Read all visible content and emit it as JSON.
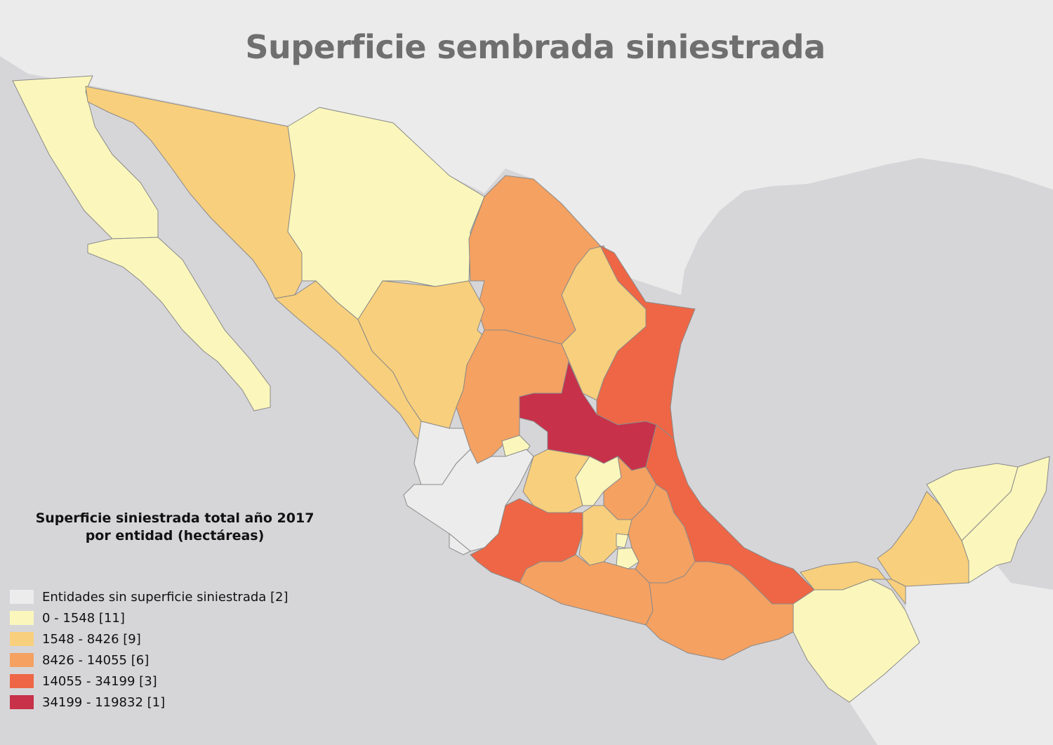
{
  "title": "Superficie sembrada siniestrada",
  "legend": {
    "title_line1": "Superficie siniestrada total año 2017",
    "title_line2": "por entidad (hectáreas)",
    "classes": [
      {
        "label": "Entidades sin superficie siniestrada [2]",
        "color": "#ececec"
      },
      {
        "label": "0 - 1548  [11]",
        "color": "#fbf7bc"
      },
      {
        "label": "1548 - 8426  [9]",
        "color": "#f8cf7c"
      },
      {
        "label": "8426 - 14055  [6]",
        "color": "#f4a162"
      },
      {
        "label": "14055 - 34199  [3]",
        "color": "#ee6645"
      },
      {
        "label": "34199 - 119832  [1]",
        "color": "#c7314a"
      }
    ]
  },
  "colors": {
    "land_background": "#ebebeb",
    "water": "#d6d6d9",
    "border": "#8a8a8a",
    "title": "#6f6f6f"
  }
}
